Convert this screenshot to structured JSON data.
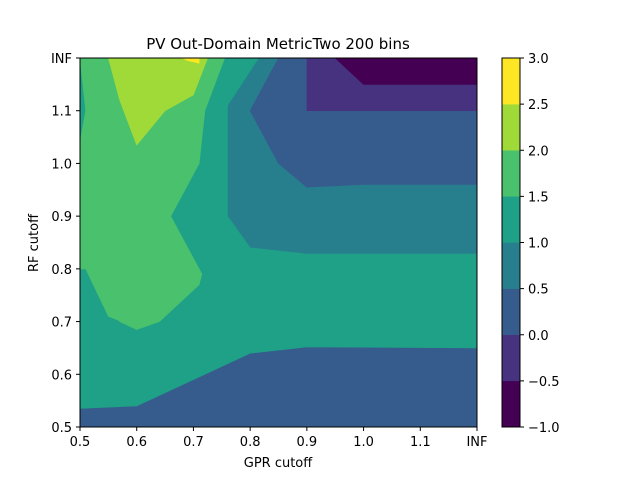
{
  "chart_data": {
    "type": "contour",
    "title": "PV Out-Domain MetricTwo 200 bins",
    "xlabel": "GPR cutoff",
    "ylabel": "RF cutoff",
    "x_ticks": [
      "0.5",
      "0.6",
      "0.7",
      "0.8",
      "0.9",
      "1.0",
      "1.1",
      "INF"
    ],
    "y_ticks": [
      "0.5",
      "0.6",
      "0.7",
      "0.8",
      "0.9",
      "1.0",
      "1.1",
      "INF"
    ],
    "xlim": [
      0.5,
      1.2
    ],
    "ylim": [
      0.5,
      1.2
    ],
    "x_note": "INF shown at position 1.2",
    "y_note": "INF shown at position 1.2",
    "colorbar": {
      "levels": [
        -1.0,
        -0.5,
        0.0,
        0.5,
        1.0,
        1.5,
        2.0,
        2.5,
        3.0
      ],
      "tick_labels": [
        "−1.0",
        "−0.5",
        "0.0",
        "0.5",
        "1.0",
        "1.5",
        "2.0",
        "2.5",
        "3.0"
      ],
      "colors": [
        "#440154",
        "#46327e",
        "#365c8d",
        "#277f8e",
        "#1fa187",
        "#4ac16d",
        "#a0da39",
        "#fde725"
      ],
      "colormap": "viridis"
    },
    "regions": [
      {
        "level_range": [
          0.5,
          1.0
        ],
        "color": "#277f8e",
        "points": [
          [
            0.5,
            0.5
          ],
          [
            1.2,
            0.5
          ],
          [
            1.2,
            0.96
          ],
          [
            1.0,
            0.96
          ],
          [
            0.9,
            0.955
          ],
          [
            0.85,
            1.0
          ],
          [
            0.8,
            1.1
          ],
          [
            0.85,
            1.2
          ],
          [
            0.5,
            1.2
          ]
        ]
      },
      {
        "level_range": [
          0.0,
          0.5
        ],
        "color": "#365c8d",
        "points": [
          [
            0.5,
            0.5
          ],
          [
            1.2,
            0.5
          ],
          [
            1.2,
            0.65
          ],
          [
            0.9,
            0.652
          ],
          [
            0.8,
            0.64
          ],
          [
            0.72,
            0.6
          ],
          [
            0.6,
            0.54
          ],
          [
            0.5,
            0.535
          ]
        ]
      },
      {
        "level_range": [
          1.0,
          1.5
        ],
        "color": "#1fa187",
        "points": [
          [
            0.5,
            0.535
          ],
          [
            0.6,
            0.54
          ],
          [
            0.72,
            0.6
          ],
          [
            0.8,
            0.64
          ],
          [
            0.9,
            0.652
          ],
          [
            1.2,
            0.65
          ],
          [
            1.2,
            0.828
          ],
          [
            0.9,
            0.828
          ],
          [
            0.8,
            0.84
          ],
          [
            0.76,
            0.9
          ],
          [
            0.76,
            1.11
          ],
          [
            0.815,
            1.2
          ],
          [
            0.5,
            1.2
          ]
        ]
      },
      {
        "level_range": [
          1.5,
          2.0
        ],
        "color": "#4ac16d",
        "points": [
          [
            0.5,
            1.2
          ],
          [
            0.51,
            1.1
          ],
          [
            0.5,
            1.04
          ],
          [
            0.5,
            0.9
          ],
          [
            0.5,
            0.8
          ],
          [
            0.545,
            0.8
          ],
          [
            0.57,
            0.7
          ],
          [
            0.6,
            0.685
          ],
          [
            0.64,
            0.7
          ],
          [
            0.71,
            0.77
          ],
          [
            0.71,
            0.79
          ],
          [
            0.66,
            0.9
          ],
          [
            0.71,
            1.0
          ],
          [
            0.72,
            1.1
          ],
          [
            0.755,
            1.2
          ]
        ]
      },
      {
        "level_range": [
          0.0,
          0.5
        ],
        "color": "#365c8d",
        "points": [
          [
            0.9,
            1.2
          ],
          [
            0.9,
            1.1
          ],
          [
            1.2,
            1.1
          ],
          [
            1.2,
            0.96
          ],
          [
            1.0,
            0.96
          ],
          [
            0.9,
            0.955
          ],
          [
            0.85,
            1.0
          ],
          [
            0.8,
            1.1
          ],
          [
            0.85,
            1.2
          ]
        ]
      },
      {
        "level_range": [
          1.5,
          2.0
        ],
        "color": "#4ac16d",
        "points": [
          [
            0.51,
            1.2
          ],
          [
            0.52,
            1.1
          ],
          [
            0.505,
            1.03
          ],
          [
            0.505,
            0.97
          ],
          [
            0.53,
            0.9
          ],
          [
            0.51,
            0.8
          ],
          [
            0.55,
            0.71
          ],
          [
            0.6,
            0.688
          ],
          [
            0.635,
            0.7
          ],
          [
            0.71,
            0.77
          ],
          [
            0.715,
            0.79
          ],
          [
            0.66,
            0.9
          ],
          [
            0.71,
            1.0
          ],
          [
            0.72,
            1.1
          ],
          [
            0.755,
            1.2
          ]
        ]
      },
      {
        "level_range": [
          2.0,
          2.5
        ],
        "color": "#a0da39",
        "points": [
          [
            0.55,
            1.2
          ],
          [
            0.57,
            1.12
          ],
          [
            0.6,
            1.035
          ],
          [
            0.65,
            1.1
          ],
          [
            0.7,
            1.13
          ],
          [
            0.725,
            1.2
          ]
        ]
      },
      {
        "level_range": [
          2.5,
          3.0
        ],
        "color": "#fde725",
        "points": [
          [
            0.68,
            1.2
          ],
          [
            0.71,
            1.2
          ],
          [
            0.71,
            1.19
          ],
          [
            0.69,
            1.195
          ]
        ]
      },
      {
        "level_range": [
          -0.5,
          0.0
        ],
        "color": "#46327e",
        "points": [
          [
            0.9,
            1.2
          ],
          [
            0.9,
            1.1
          ],
          [
            1.2,
            1.1
          ],
          [
            1.2,
            1.2
          ]
        ]
      },
      {
        "level_range": [
          -1.0,
          -0.5
        ],
        "color": "#440154",
        "points": [
          [
            0.95,
            1.2
          ],
          [
            1.0,
            1.15
          ],
          [
            1.2,
            1.15
          ],
          [
            1.2,
            1.2
          ]
        ]
      }
    ]
  }
}
